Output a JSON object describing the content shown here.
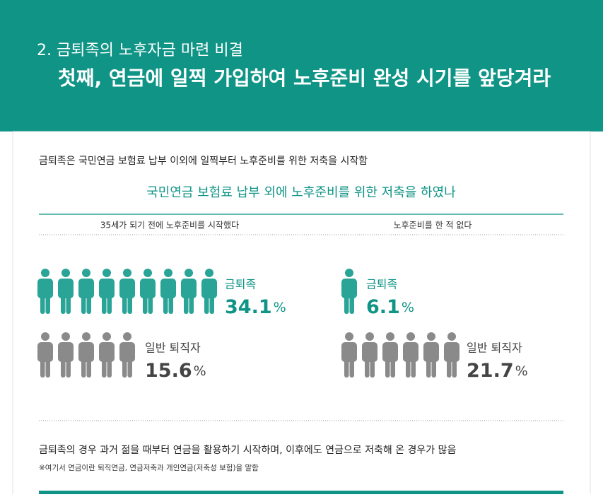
{
  "header": {
    "section": "2. 금퇴족의 노후자금 마련 비결",
    "title": "첫째, 연금에 일찍 가입하여 노후준비 완성 시기를 앞당겨라"
  },
  "intro": "금퇴족은 국민연금 보험료 납부 이외에 일찍부터 노후준비를 위한 저축을 시작함",
  "question": "국민연금 보험료 납부 외에 노후준비를 위한 저축을 하였나",
  "columns": [
    {
      "heading": "35세가 되기 전에 노후준비를 시작했다",
      "groups": [
        {
          "label": "금퇴족",
          "value": "34.1",
          "unit": "%"
        },
        {
          "label": "일반 퇴직자",
          "value": "15.6",
          "unit": "%"
        }
      ]
    },
    {
      "heading": "노후준비를 한 적 없다",
      "groups": [
        {
          "label": "금퇴족",
          "value": "6.1",
          "unit": "%"
        },
        {
          "label": "일반 퇴직자",
          "value": "21.7",
          "unit": "%"
        }
      ]
    }
  ],
  "conclusion": "금퇴족의 경우 과거 젊을 때부터 연금을 활용하기 시작하며, 이후에도 연금으로 저축해 온 경우가 많음",
  "note": "※여기서 연금이란 퇴직연금, 연금저축과 개인연금(저축성 보험)을 말함"
}
